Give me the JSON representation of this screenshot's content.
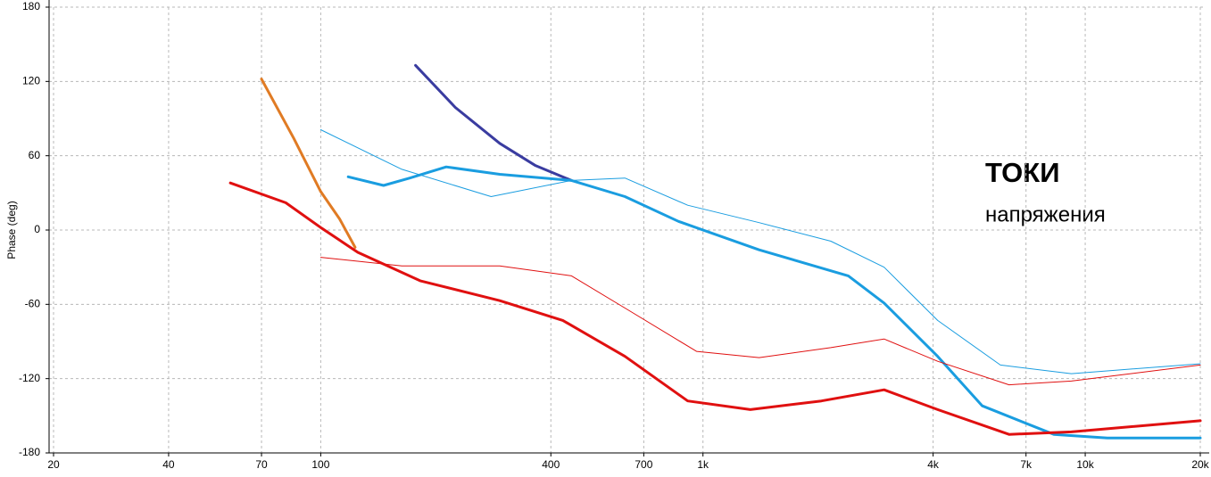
{
  "chart_data": {
    "type": "line",
    "y_label": "Phase (deg)",
    "annotations": [
      "ТОКИ",
      "напряжения"
    ],
    "annotation_color": "#1a8c2a",
    "xscale": "log",
    "grid": true,
    "xlim": [
      20,
      20000
    ],
    "ylim": [
      -180,
      180
    ],
    "yticks": [
      -180,
      -120,
      -60,
      0,
      60,
      120,
      180
    ],
    "xticks": [
      20,
      40,
      70,
      100,
      400,
      700,
      {
        "value": 1000,
        "label": "1k"
      },
      {
        "value": 4000,
        "label": "4k"
      },
      {
        "value": 7000,
        "label": "7k"
      },
      {
        "value": 10000,
        "label": "10k"
      },
      {
        "value": 20000,
        "label": "20k"
      }
    ],
    "series": [
      {
        "color": "#e07b24",
        "line_width": 3,
        "x": [
          70,
          85,
          100,
          112,
          123
        ],
        "values": [
          122,
          74,
          31,
          9,
          -14
        ]
      },
      {
        "color": "#3a3ca0",
        "line_width": 3,
        "x": [
          177,
          225,
          294,
          365,
          453
        ],
        "values": [
          133,
          99,
          70,
          52,
          40
        ]
      },
      {
        "color": "#1a9de0",
        "line_width": 3,
        "x": [
          118,
          146,
          171,
          213,
          294,
          453,
          625,
          863,
          1402,
          2400,
          2977,
          4110,
          5380,
          8280,
          11430,
          20000
        ],
        "values": [
          43,
          36,
          42,
          51,
          45,
          40,
          27,
          7,
          -16,
          -37,
          -59,
          -102,
          -142,
          -165,
          -168,
          -168
        ]
      },
      {
        "color": "#e01010",
        "line_width": 3,
        "x": [
          58,
          81,
          100,
          125,
          182,
          294,
          430,
          625,
          912,
          1330,
          2040,
          2977,
          4110,
          6320,
          9200,
          20000
        ],
        "values": [
          38,
          22,
          2,
          -18,
          -41,
          -57,
          -73,
          -102,
          -138,
          -145,
          -138,
          -129,
          -145,
          -165,
          -163,
          -154
        ]
      },
      {
        "color": "#1a9de0",
        "line_width": 1,
        "x": [
          100,
          163,
          279,
          453,
          625,
          912,
          1402,
          2160,
          2977,
          4110,
          6000,
          9200,
          20000
        ],
        "values": [
          81,
          49,
          27,
          40,
          42,
          20,
          6,
          -9,
          -30,
          -73,
          -109,
          -116,
          -108
        ]
      },
      {
        "color": "#e01010",
        "line_width": 1,
        "x": [
          100,
          163,
          294,
          453,
          625,
          962,
          1402,
          2160,
          2977,
          4110,
          6320,
          9200,
          20000
        ],
        "values": [
          -22,
          -29,
          -29,
          -37,
          -63,
          -98,
          -103,
          -95,
          -88,
          -106,
          -125,
          -122,
          -109
        ]
      }
    ]
  }
}
